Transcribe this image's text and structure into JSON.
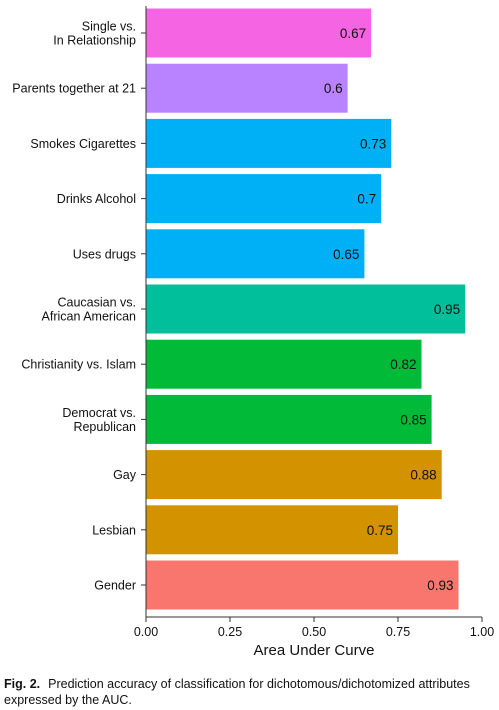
{
  "chart_data": {
    "type": "bar",
    "orientation": "horizontal",
    "xlabel": "Area Under Curve",
    "xlim": [
      0,
      1
    ],
    "xticks": [
      "0.00",
      "0.25",
      "0.50",
      "0.75",
      "1.00"
    ],
    "grid": false,
    "categories": [
      [
        "Single vs.",
        "In Relationship"
      ],
      [
        "Parents together at 21"
      ],
      [
        "Smokes Cigarettes"
      ],
      [
        "Drinks Alcohol"
      ],
      [
        "Uses drugs"
      ],
      [
        "Caucasian vs.",
        "African American"
      ],
      [
        "Christianity vs. Islam"
      ],
      [
        "Democrat vs.",
        "Republican"
      ],
      [
        "Gay"
      ],
      [
        "Lesbian"
      ],
      [
        "Gender"
      ]
    ],
    "values": [
      0.67,
      0.6,
      0.73,
      0.7,
      0.65,
      0.95,
      0.82,
      0.85,
      0.88,
      0.75,
      0.93
    ],
    "value_labels": [
      "0.67",
      "0.6",
      "0.73",
      "0.7",
      "0.65",
      "0.95",
      "0.82",
      "0.85",
      "0.88",
      "0.75",
      "0.93"
    ],
    "colors": [
      "#f564e3",
      "#b983ff",
      "#00b0f6",
      "#00b0f6",
      "#00b0f6",
      "#00bf9a",
      "#00ba38",
      "#00ba38",
      "#d39200",
      "#d39200",
      "#f8766d"
    ]
  },
  "caption": {
    "label": "Fig. 2.",
    "text": "Prediction accuracy of classification for dichotomous/dichotomized attributes expressed by the AUC."
  }
}
